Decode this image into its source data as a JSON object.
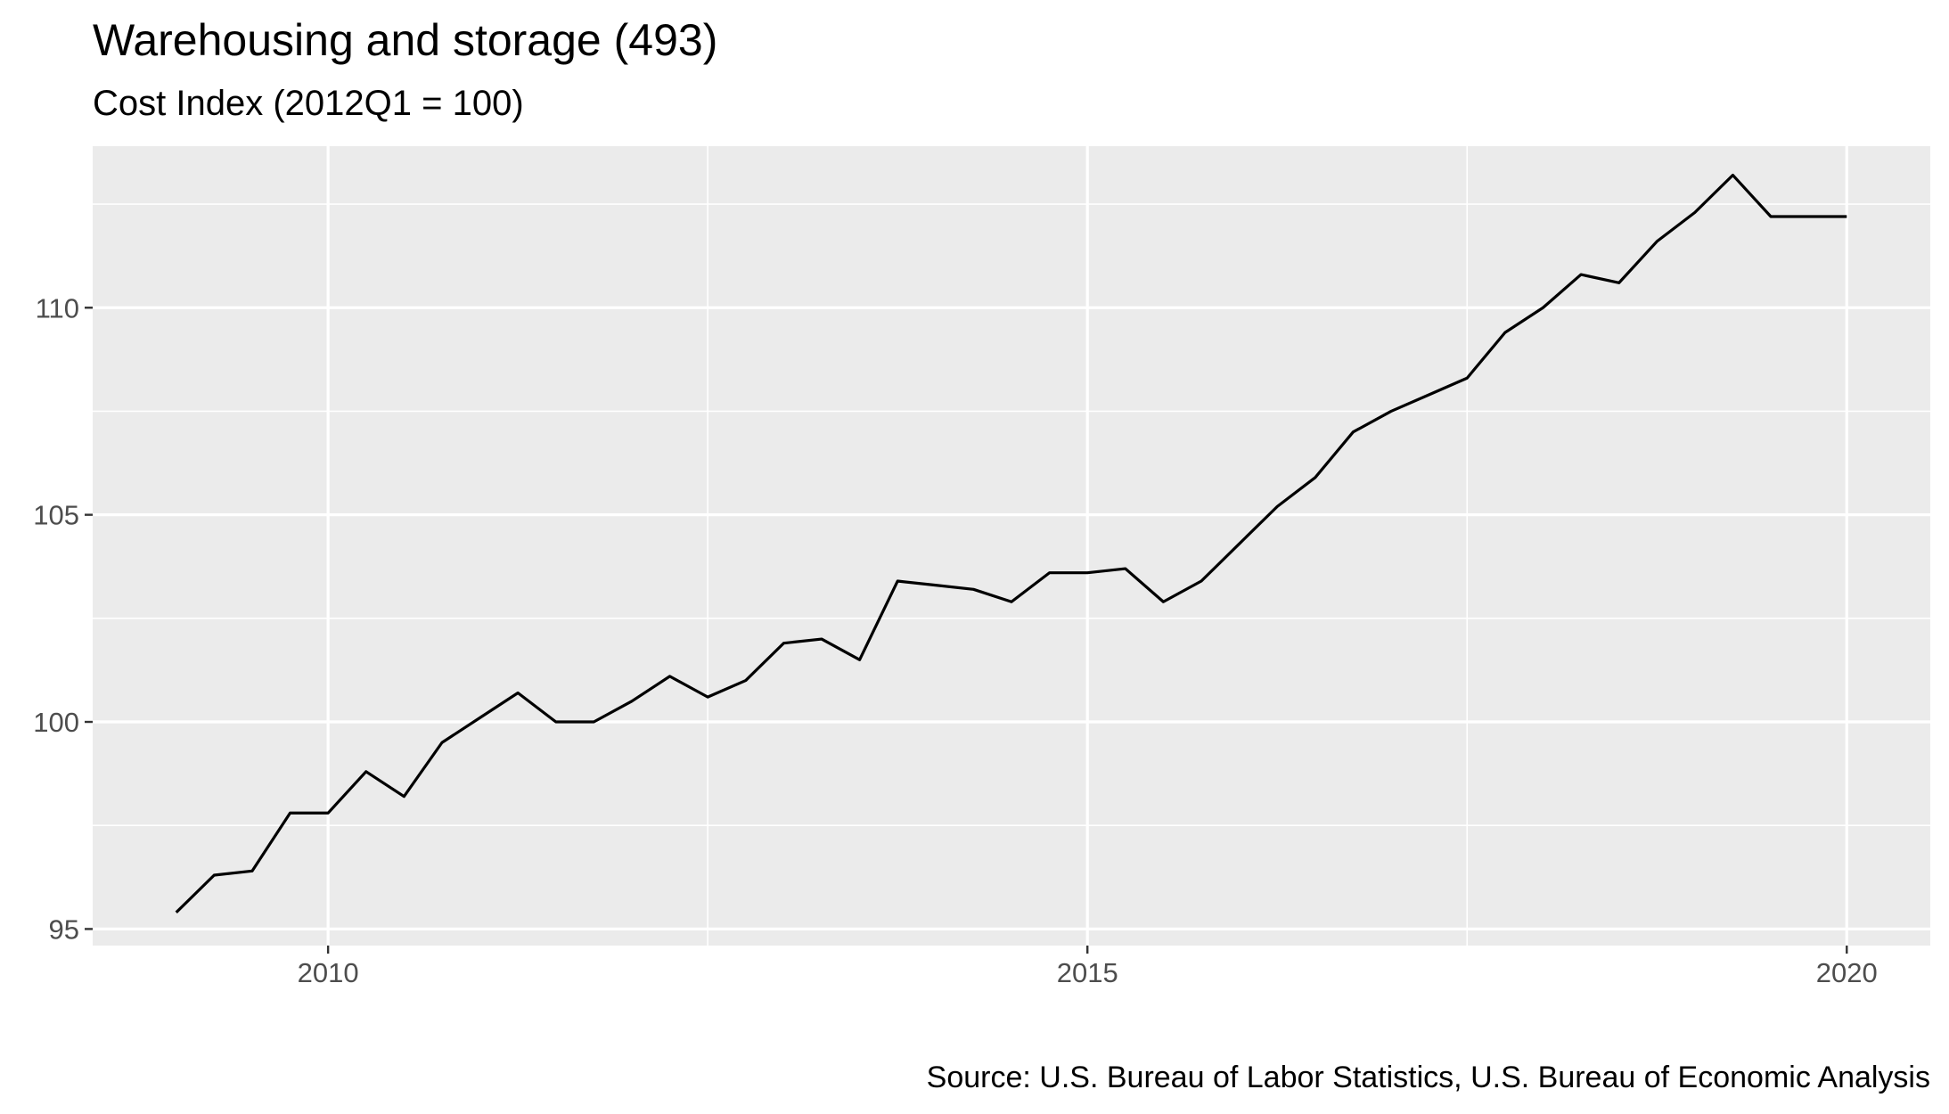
{
  "chart_data": {
    "type": "line",
    "title": "Warehousing and storage (493)",
    "subtitle": "Cost Index (2012Q1 = 100)",
    "caption": "Source: U.S. Bureau of Labor Statistics, U.S. Bureau of Economic Analysis",
    "xlabel": "",
    "ylabel": "",
    "xlim": [
      2008.45,
      2020.55
    ],
    "ylim": [
      94.6,
      113.9
    ],
    "x_major_ticks": [
      2010,
      2015,
      2020
    ],
    "x_minor_ticks": [
      2012.5,
      2017.5
    ],
    "y_major_ticks": [
      95,
      100,
      105,
      110
    ],
    "y_minor_ticks": [
      97.5,
      102.5,
      107.5,
      112.5
    ],
    "grid": true,
    "legend": "none",
    "colors": {
      "panel": "#ebebeb",
      "grid": "#ffffff",
      "line": "#000000",
      "tick_text": "#4d4d4d"
    },
    "series": [
      {
        "x": [
          2009.0,
          2009.25,
          2009.5,
          2009.75,
          2010.0,
          2010.25,
          2010.5,
          2010.75,
          2011.0,
          2011.25,
          2011.5,
          2011.75,
          2012.0,
          2012.25,
          2012.5,
          2012.75,
          2013.0,
          2013.25,
          2013.5,
          2013.75,
          2014.0,
          2014.25,
          2014.5,
          2014.75,
          2015.0,
          2015.25,
          2015.5,
          2015.75,
          2016.0,
          2016.25,
          2016.5,
          2016.75,
          2017.0,
          2017.25,
          2017.5,
          2017.75,
          2018.0,
          2018.25,
          2018.5,
          2018.75,
          2019.0,
          2019.25,
          2019.5,
          2019.75,
          2020.0
        ],
        "values": [
          95.4,
          96.3,
          96.4,
          97.8,
          97.8,
          98.8,
          98.2,
          99.5,
          100.1,
          100.7,
          100.0,
          100.0,
          100.5,
          101.1,
          100.6,
          101.0,
          101.9,
          102.0,
          101.5,
          103.4,
          103.3,
          103.2,
          102.9,
          103.6,
          103.6,
          103.7,
          102.9,
          103.4,
          104.3,
          105.2,
          105.9,
          107.0,
          107.5,
          107.9,
          108.3,
          109.4,
          110.0,
          110.8,
          110.6,
          111.6,
          112.3,
          113.2,
          112.2,
          112.2,
          112.2
        ]
      }
    ],
    "x_tick_labels": [
      "2010",
      "2015",
      "2020"
    ],
    "y_tick_labels": [
      "95",
      "100",
      "105",
      "110"
    ]
  }
}
